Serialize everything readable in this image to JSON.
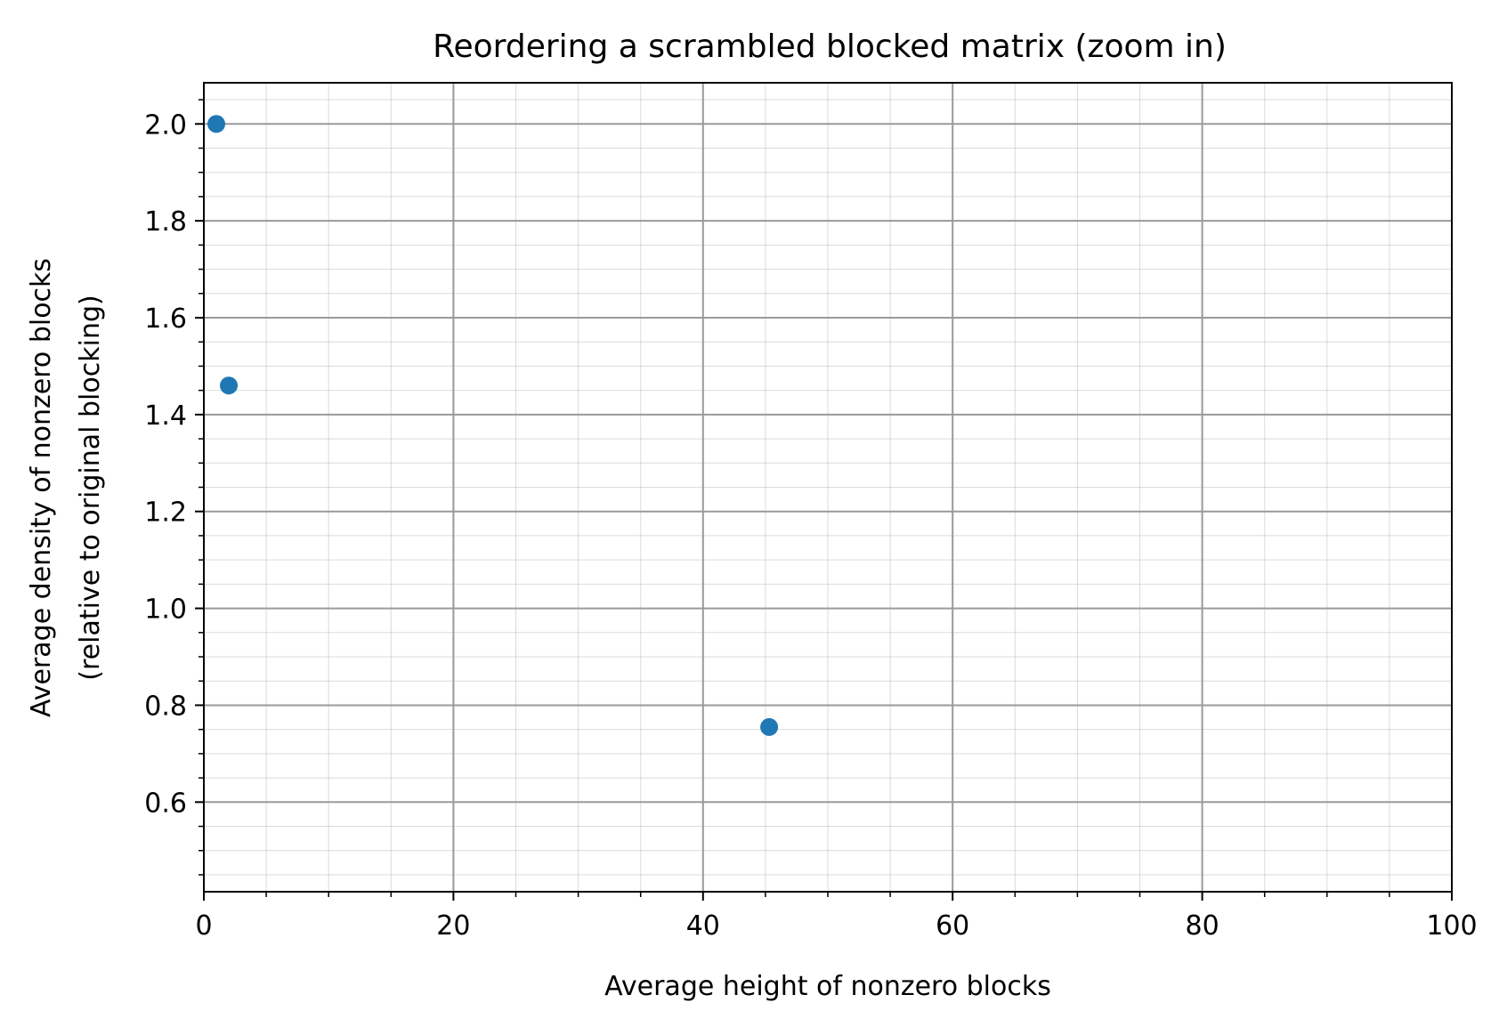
{
  "chart_data": {
    "type": "scatter",
    "title": "Reordering a scrambled blocked matrix (zoom in)",
    "xlabel": "Average height of nonzero blocks",
    "ylabel_lines": [
      "Average density of nonzero blocks",
      "(relative to original blocking)"
    ],
    "xlim": [
      0,
      100
    ],
    "ylim": [
      0.415,
      2.085
    ],
    "x_ticks": [
      0,
      20,
      40,
      60,
      80,
      100
    ],
    "x_tick_labels": [
      "0",
      "20",
      "40",
      "60",
      "80",
      "100"
    ],
    "y_ticks": [
      0.6,
      0.8,
      1.0,
      1.2,
      1.4,
      1.6,
      1.8,
      2.0
    ],
    "y_tick_labels": [
      "0.6",
      "0.8",
      "1.0",
      "1.2",
      "1.4",
      "1.6",
      "1.8",
      "2.0"
    ],
    "x_minor_step": 5,
    "y_minor_step": 0.05,
    "grid": true,
    "series": [
      {
        "color": "#1f77b4",
        "points": [
          {
            "x": 1.0,
            "y": 2.0
          },
          {
            "x": 2.0,
            "y": 1.46
          },
          {
            "x": 45.3,
            "y": 0.755
          }
        ]
      }
    ]
  }
}
